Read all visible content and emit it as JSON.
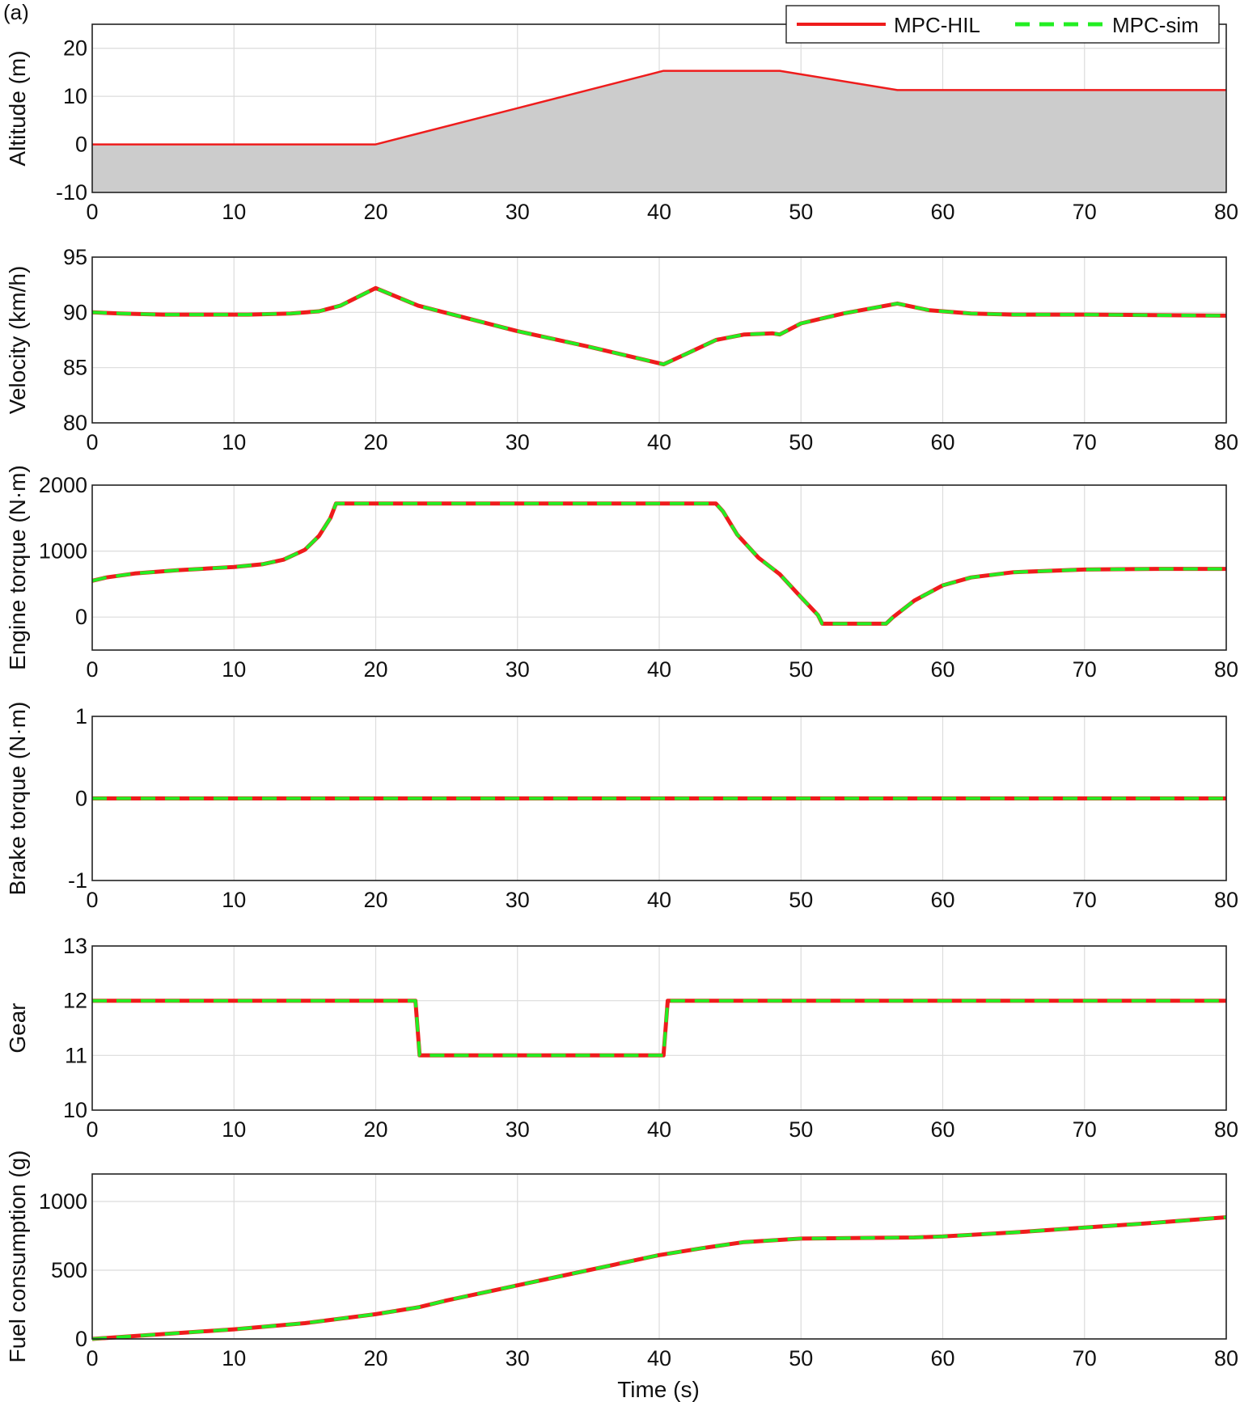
{
  "panel_tag": "(a)",
  "legend": [
    {
      "label": "MPC-HIL",
      "color": "#ee1c1c",
      "style": "solid"
    },
    {
      "label": "MPC-sim",
      "color": "#22ee22",
      "style": "dashed"
    }
  ],
  "xlabel": "Time (s)",
  "chart_data": [
    {
      "type": "area",
      "ylabel": "Altitude (m)",
      "xlim": [
        0,
        80
      ],
      "ylim": [
        -10,
        25
      ],
      "xticks": [
        0,
        10,
        20,
        30,
        40,
        50,
        60,
        70,
        80
      ],
      "yticks": [
        -10,
        0,
        10,
        20
      ],
      "grid": true,
      "fill_color": "#cccccc",
      "series": [
        {
          "name": "MPC-HIL",
          "x": [
            0,
            20,
            40.3,
            48.5,
            56.8,
            80
          ],
          "y": [
            0,
            0,
            15.3,
            15.3,
            11.3,
            11.3
          ]
        }
      ]
    },
    {
      "type": "line",
      "ylabel": "Velocity (km/h)",
      "xlim": [
        0,
        80
      ],
      "ylim": [
        80,
        95
      ],
      "xticks": [
        0,
        10,
        20,
        30,
        40,
        50,
        60,
        70,
        80
      ],
      "yticks": [
        80,
        85,
        90,
        95
      ],
      "grid": true,
      "series": [
        {
          "name": "MPC-HIL",
          "x": [
            0,
            2,
            5,
            8,
            11,
            14,
            16,
            17.5,
            20,
            23,
            30,
            35,
            40.3,
            42,
            44,
            46,
            48,
            48.5,
            50,
            53,
            56.8,
            59,
            62,
            65,
            70,
            75,
            80
          ],
          "y": [
            90,
            89.9,
            89.8,
            89.8,
            89.8,
            89.9,
            90.1,
            90.6,
            92.2,
            90.6,
            88.3,
            86.9,
            85.3,
            86.3,
            87.5,
            88.0,
            88.1,
            88.0,
            89.0,
            89.9,
            90.8,
            90.2,
            89.9,
            89.8,
            89.8,
            89.75,
            89.7
          ]
        },
        {
          "name": "MPC-sim",
          "x": [
            0,
            2,
            5,
            8,
            11,
            14,
            16,
            17.5,
            20,
            23,
            30,
            35,
            40.3,
            42,
            44,
            46,
            48,
            48.5,
            50,
            53,
            56.8,
            59,
            62,
            65,
            70,
            75,
            80
          ],
          "y": [
            90,
            89.9,
            89.8,
            89.8,
            89.8,
            89.9,
            90.1,
            90.6,
            92.2,
            90.6,
            88.3,
            86.9,
            85.3,
            86.3,
            87.5,
            88.0,
            88.1,
            88.0,
            89.0,
            89.9,
            90.8,
            90.2,
            89.9,
            89.8,
            89.8,
            89.75,
            89.7
          ]
        }
      ]
    },
    {
      "type": "line",
      "ylabel": "Engine torque (N·m)",
      "xlim": [
        0,
        80
      ],
      "ylim": [
        -500,
        2000
      ],
      "xticks": [
        0,
        10,
        20,
        30,
        40,
        50,
        60,
        70,
        80
      ],
      "yticks": [
        0,
        1000,
        2000
      ],
      "grid": true,
      "series": [
        {
          "name": "MPC-HIL",
          "x": [
            0,
            1,
            3,
            6,
            10,
            12,
            13.5,
            15,
            16,
            16.8,
            17.2,
            20,
            30,
            40,
            44,
            44.5,
            45.5,
            47,
            48.5,
            50,
            51.2,
            51.5,
            56,
            56.5,
            58,
            60,
            62,
            65,
            70,
            75,
            80
          ],
          "y": [
            550,
            600,
            660,
            710,
            760,
            800,
            870,
            1020,
            1230,
            1500,
            1720,
            1720,
            1720,
            1720,
            1720,
            1600,
            1250,
            900,
            650,
            300,
            30,
            -100,
            -100,
            0,
            250,
            480,
            600,
            680,
            720,
            730,
            730
          ]
        },
        {
          "name": "MPC-sim",
          "x": [
            0,
            1,
            3,
            6,
            10,
            12,
            13.5,
            15,
            16,
            16.8,
            17.2,
            20,
            30,
            40,
            44,
            44.5,
            45.5,
            47,
            48.5,
            50,
            51.2,
            51.5,
            56,
            56.5,
            58,
            60,
            62,
            65,
            70,
            75,
            80
          ],
          "y": [
            550,
            600,
            660,
            710,
            760,
            800,
            870,
            1020,
            1230,
            1500,
            1720,
            1720,
            1720,
            1720,
            1720,
            1600,
            1250,
            900,
            650,
            300,
            30,
            -100,
            -100,
            0,
            250,
            480,
            600,
            680,
            720,
            730,
            730
          ]
        }
      ]
    },
    {
      "type": "line",
      "ylabel": "Brake torque (N·m)",
      "xlim": [
        0,
        80
      ],
      "ylim": [
        -1,
        1
      ],
      "xticks": [
        0,
        10,
        20,
        30,
        40,
        50,
        60,
        70,
        80
      ],
      "yticks": [
        -1,
        0,
        1
      ],
      "grid": true,
      "series": [
        {
          "name": "MPC-HIL",
          "x": [
            0,
            80
          ],
          "y": [
            0,
            0
          ]
        },
        {
          "name": "MPC-sim",
          "x": [
            0,
            80
          ],
          "y": [
            0,
            0
          ]
        }
      ]
    },
    {
      "type": "line",
      "ylabel": "Gear",
      "xlim": [
        0,
        80
      ],
      "ylim": [
        10,
        13
      ],
      "xticks": [
        0,
        10,
        20,
        30,
        40,
        50,
        60,
        70,
        80
      ],
      "yticks": [
        10,
        11,
        12,
        13
      ],
      "grid": true,
      "series": [
        {
          "name": "MPC-HIL",
          "x": [
            0,
            22.8,
            23.1,
            40.3,
            40.6,
            80
          ],
          "y": [
            12,
            12,
            11,
            11,
            12,
            12
          ]
        },
        {
          "name": "MPC-sim",
          "x": [
            0,
            22.8,
            23.1,
            40.3,
            40.6,
            80
          ],
          "y": [
            12,
            12,
            11,
            11,
            12,
            12
          ]
        }
      ]
    },
    {
      "type": "line",
      "ylabel": "Fuel consumption (g)",
      "xlim": [
        0,
        80
      ],
      "ylim": [
        0,
        1200
      ],
      "xticks": [
        0,
        10,
        20,
        30,
        40,
        50,
        60,
        70,
        80
      ],
      "yticks": [
        0,
        500,
        1000
      ],
      "grid": true,
      "series": [
        {
          "name": "MPC-HIL",
          "x": [
            0,
            5,
            10,
            15,
            20,
            23,
            25,
            30,
            35,
            40,
            43,
            46,
            50,
            55,
            58,
            60,
            65,
            70,
            75,
            80
          ],
          "y": [
            0,
            35,
            70,
            115,
            180,
            230,
            280,
            390,
            500,
            610,
            660,
            705,
            730,
            735,
            738,
            745,
            775,
            810,
            845,
            885
          ]
        },
        {
          "name": "MPC-sim",
          "x": [
            0,
            5,
            10,
            15,
            20,
            23,
            25,
            30,
            35,
            40,
            43,
            46,
            50,
            55,
            58,
            60,
            65,
            70,
            75,
            80
          ],
          "y": [
            0,
            35,
            70,
            115,
            180,
            230,
            280,
            390,
            500,
            610,
            660,
            705,
            730,
            735,
            738,
            745,
            775,
            810,
            845,
            885
          ]
        }
      ]
    }
  ]
}
